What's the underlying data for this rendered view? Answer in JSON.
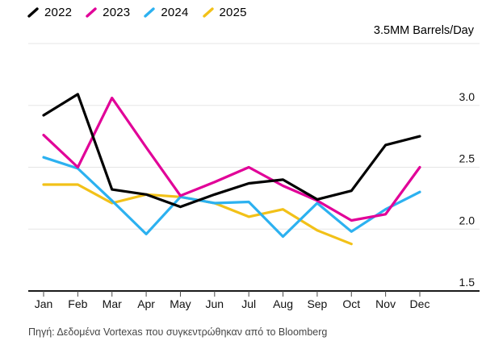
{
  "legend": {
    "items": [
      {
        "label": "2022",
        "color": "#000000"
      },
      {
        "label": "2023",
        "color": "#e10098"
      },
      {
        "label": "2024",
        "color": "#2cb1f0"
      },
      {
        "label": "2025",
        "color": "#f2c118"
      }
    ]
  },
  "axis_title": "3.5MM Barrels/Day",
  "source": "Πηγή: Δεδομένα Vortexas που συγκεντρώθηκαν από το Bloomberg",
  "chart_data": {
    "type": "line",
    "title": "",
    "unit_label": "3.5MM Barrels/Day",
    "categories": [
      "Jan",
      "Feb",
      "Mar",
      "Apr",
      "May",
      "Jun",
      "Jul",
      "Aug",
      "Sep",
      "Oct",
      "Nov",
      "Dec"
    ],
    "ylim": [
      1.5,
      3.5
    ],
    "grid": true,
    "legend_position": "top-left",
    "gridline_values": [
      3.5,
      3.0,
      2.5,
      2.0
    ],
    "y_ticks": [
      3.0,
      2.5,
      2.0,
      1.5
    ],
    "y_tick_labels": [
      "3.0",
      "2.5",
      "2.0",
      "1.5"
    ],
    "series": [
      {
        "name": "2022",
        "color": "#000000",
        "values": [
          2.92,
          3.09,
          2.32,
          2.28,
          2.18,
          2.28,
          2.37,
          2.4,
          2.24,
          2.31,
          2.68,
          2.75
        ]
      },
      {
        "name": "2023",
        "color": "#e10098",
        "values": [
          2.76,
          2.5,
          3.06,
          2.66,
          2.27,
          2.38,
          2.5,
          2.35,
          2.23,
          2.07,
          2.12,
          2.5
        ]
      },
      {
        "name": "2024",
        "color": "#2cb1f0",
        "values": [
          2.58,
          2.49,
          2.23,
          1.96,
          2.26,
          2.21,
          2.22,
          1.94,
          2.21,
          1.98,
          2.16,
          2.3
        ]
      },
      {
        "name": "2025",
        "color": "#f2c118",
        "values": [
          2.36,
          2.36,
          2.21,
          2.28,
          2.26,
          2.21,
          2.1,
          2.16,
          1.99,
          1.88,
          null,
          null
        ]
      }
    ]
  }
}
